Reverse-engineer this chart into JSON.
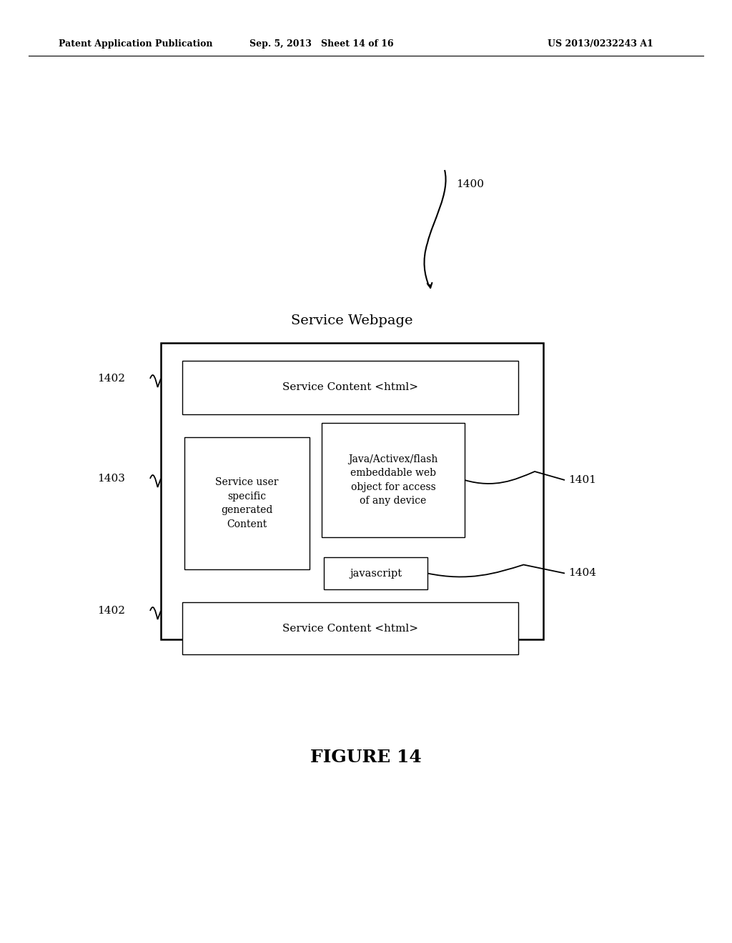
{
  "bg_color": "#ffffff",
  "header_left": "Patent Application Publication",
  "header_mid": "Sep. 5, 2013   Sheet 14 of 16",
  "header_right": "US 2013/0232243 A1",
  "figure_label": "FIGURE 14",
  "outer_label": "Service Webpage",
  "top_inner_label": "Service Content <html>",
  "left_inner_label": "Service user\nspecific\ngenerated\nContent",
  "right_inner_label": "Java/Activex/flash\nembeddable web\nobject for access\nof any device",
  "js_label": "javascript",
  "bottom_inner_label": "Service Content <html>",
  "label_1400": "1400",
  "label_1401": "1401",
  "label_1402_top": "1402",
  "label_1402_bot": "1402",
  "label_1403": "1403",
  "label_1404": "1404"
}
